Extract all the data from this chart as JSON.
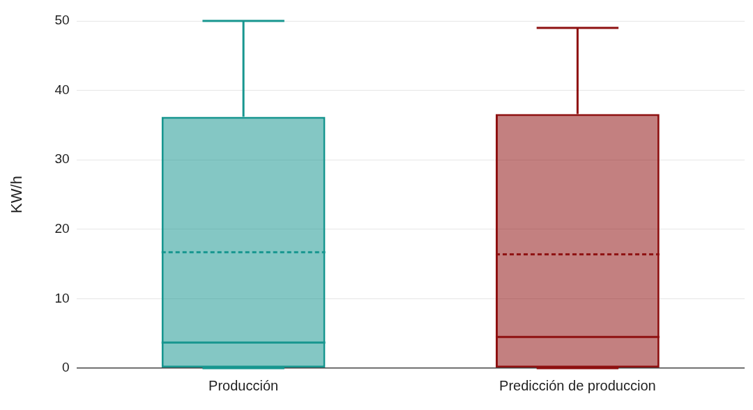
{
  "chart_data": {
    "type": "box",
    "ylabel": "KW/h",
    "categories": [
      "Producción",
      "Predicción de produccion"
    ],
    "boxes": [
      {
        "low": 0,
        "q1": 0,
        "median": 3.7,
        "q3": 36.2,
        "high": 50,
        "mean": 16.7
      },
      {
        "low": 0,
        "q1": 0,
        "median": 4.5,
        "q3": 36.6,
        "high": 49.0,
        "mean": 16.4
      }
    ],
    "colors": [
      "#17968f",
      "#8e1010"
    ],
    "ylim": [
      0,
      50
    ],
    "yticks": [
      0,
      10,
      20,
      30,
      40,
      50
    ],
    "grid": "y",
    "legend": false
  }
}
